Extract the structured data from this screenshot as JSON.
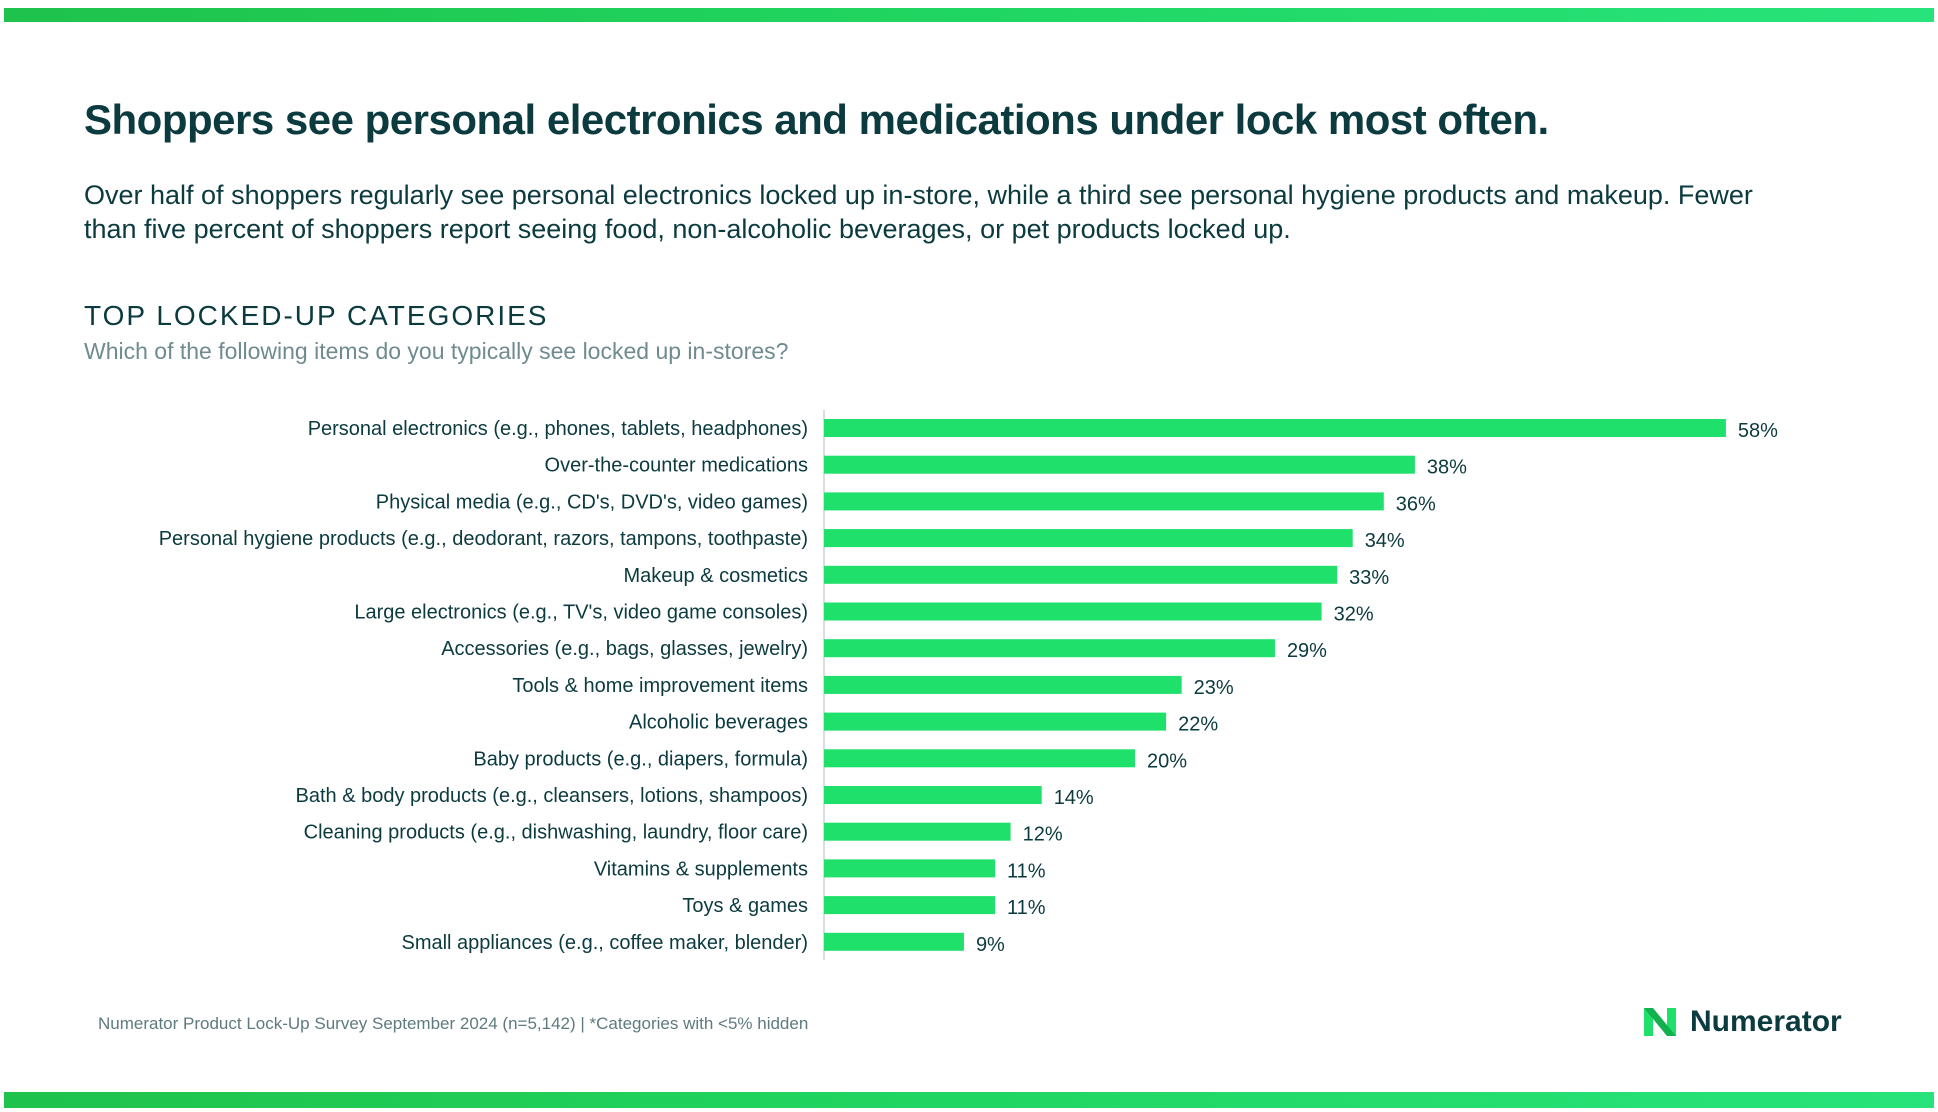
{
  "header": {
    "title": "Shoppers see personal electronics and medications under lock most often.",
    "subtitle": "Over half of shoppers regularly see personal electronics locked up in-store, while a third see personal hygiene products and makeup. Fewer than five percent of shoppers report seeing food, non-alcoholic beverages, or pet products locked up."
  },
  "section": {
    "title": "TOP LOCKED-UP CATEGORIES",
    "question": "Which of the following items do you typically see locked up in-stores?"
  },
  "chart_data": {
    "type": "bar",
    "orientation": "horizontal",
    "categories": [
      "Personal electronics (e.g., phones, tablets, headphones)",
      "Over-the-counter medications",
      "Physical media (e.g., CD's, DVD's, video games)",
      "Personal hygiene products (e.g., deodorant, razors, tampons, toothpaste)",
      "Makeup & cosmetics",
      "Large electronics (e.g., TV's, video game consoles)",
      "Accessories (e.g., bags, glasses, jewelry)",
      "Tools & home improvement items",
      "Alcoholic beverages",
      "Baby products (e.g., diapers, formula)",
      "Bath & body products (e.g., cleansers, lotions, shampoos)",
      "Cleaning products (e.g., dishwashing, laundry, floor care)",
      "Vitamins & supplements",
      "Toys & games",
      "Small appliances (e.g., coffee maker, blender)"
    ],
    "values": [
      58,
      38,
      36,
      34,
      33,
      32,
      29,
      23,
      22,
      20,
      14,
      12,
      11,
      11,
      9
    ],
    "value_suffix": "%",
    "xlim": [
      0,
      60
    ],
    "grid": false,
    "bar_color": "#1ee06a",
    "axis_color": "#c9d3d5"
  },
  "footer": {
    "note": "Numerator Product Lock-Up Survey September 2024 (n=5,142) | *Categories with <5% hidden",
    "logo_text": "Numerator",
    "logo_icon": "numerator-n-logo-icon"
  },
  "colors": {
    "accent": "#1ee06a",
    "text_dark": "#0b3a3f",
    "text_muted": "#6f8b90"
  }
}
